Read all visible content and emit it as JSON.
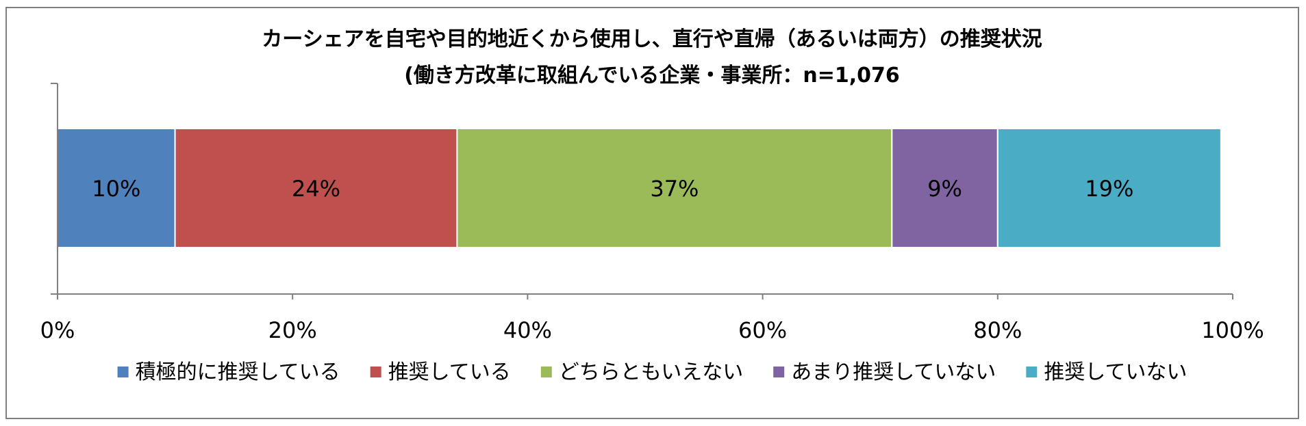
{
  "chart_data": {
    "type": "bar",
    "orientation": "horizontal",
    "stacked": true,
    "percent_stacked": true,
    "title": "カーシェアを自宅や目的地近くから使用し、直行や直帰（あるいは両方）の推奨状況",
    "subtitle": "(働き方改革に取組んでいる企業・事業所：n=1,076",
    "xlabel": "",
    "ylabel": "",
    "xlim": [
      0,
      100
    ],
    "x_ticks": [
      "0%",
      "20%",
      "40%",
      "60%",
      "80%",
      "100%"
    ],
    "x_tick_values": [
      0,
      20,
      40,
      60,
      80,
      100
    ],
    "grid": false,
    "legend_position": "bottom",
    "categories": [
      ""
    ],
    "series": [
      {
        "name": "積極的に推奨している",
        "values": [
          10
        ],
        "label": "10%",
        "color": "#4f81bd"
      },
      {
        "name": "推奨している",
        "values": [
          24
        ],
        "label": "24%",
        "color": "#c0504d"
      },
      {
        "name": "どちらともいえない",
        "values": [
          37
        ],
        "label": "37%",
        "color": "#9bbb59"
      },
      {
        "name": "あまり推奨していない",
        "values": [
          9
        ],
        "label": "9%",
        "color": "#8064a2"
      },
      {
        "name": "推奨していない",
        "values": [
          19
        ],
        "label": "19%",
        "color": "#4bacc6"
      }
    ]
  }
}
